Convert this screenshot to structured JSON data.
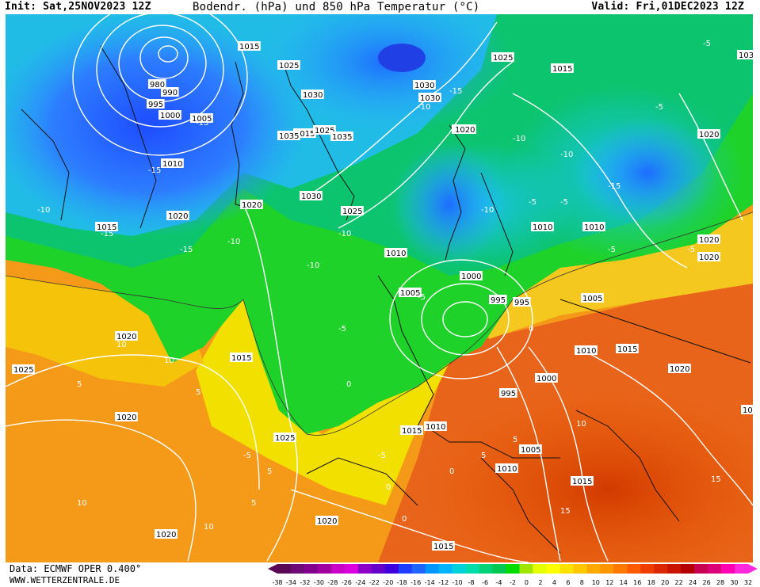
{
  "header": {
    "init": "Init: Sat,25NOV2023 12Z",
    "title": "Bodendr. (hPa) und 850 hPa Temperatur (°C)",
    "valid": "Valid: Fri,01DEC2023 12Z"
  },
  "footer": {
    "data_source": "Data: ECMWF OPER 0.400°",
    "website": "WWW.WETTERZENTRALE.DE"
  },
  "colorbar": {
    "ticks": [
      "-38",
      "-34",
      "-32",
      "-30",
      "-28",
      "-26",
      "-24",
      "-22",
      "-20",
      "-18",
      "-16",
      "-14",
      "-12",
      "-10",
      "-8",
      "-6",
      "-4",
      "-2",
      "0",
      "2",
      "4",
      "6",
      "8",
      "10",
      "12",
      "14",
      "16",
      "18",
      "20",
      "22",
      "24",
      "26",
      "28",
      "30",
      "32"
    ],
    "colors": [
      "#5a0a55",
      "#6e0a78",
      "#82008c",
      "#a000a0",
      "#c800c8",
      "#dc00dc",
      "#8c00c8",
      "#6400c8",
      "#3c00dc",
      "#1e3cff",
      "#1e64ff",
      "#0096ff",
      "#00b4ff",
      "#00d2dc",
      "#00dcaa",
      "#00d278",
      "#00c850",
      "#00dc00",
      "#a0e600",
      "#e6ff00",
      "#ffff00",
      "#ffe100",
      "#ffc800",
      "#ffaa00",
      "#ff9600",
      "#ff7800",
      "#ff5a00",
      "#f03c00",
      "#dc2800",
      "#c81400",
      "#b40000",
      "#c80050",
      "#dc0078",
      "#ff00b4",
      "#ff28dc"
    ]
  },
  "map": {
    "temp_labels": [
      "-15",
      "-10",
      "-15",
      "-15",
      "-15",
      "-10",
      "-10",
      "-5",
      "-10",
      "-15",
      "-10",
      "-15",
      "-5",
      "-5",
      "-10",
      "-10",
      "-5",
      "-5",
      "-5",
      "-5",
      "0",
      "0",
      "5",
      "5",
      "10",
      "10",
      "-5",
      "5",
      "0",
      "-5",
      "5",
      "10",
      "10",
      "15",
      "15",
      "10",
      "5",
      "5",
      "0",
      "0",
      "-10",
      "-5"
    ],
    "pressure_labels": [
      "1015",
      "1025",
      "1030",
      "1015",
      "1025",
      "1020",
      "980",
      "990",
      "995",
      "1000",
      "1005",
      "1010",
      "1020",
      "1015",
      "1025",
      "1030",
      "1035",
      "1035",
      "1030",
      "1030",
      "1020",
      "1025",
      "1020",
      "1015",
      "1030",
      "1020",
      "1010",
      "1010",
      "1010",
      "1000",
      "995",
      "995",
      "1005",
      "1020",
      "1020",
      "1015",
      "1020",
      "1005",
      "1000",
      "1010",
      "1015",
      "995",
      "1020",
      "1025",
      "1010",
      "1015",
      "1025",
      "1020",
      "1005",
      "1010",
      "1015",
      "1020",
      "1015",
      "1020",
      "1010"
    ]
  }
}
